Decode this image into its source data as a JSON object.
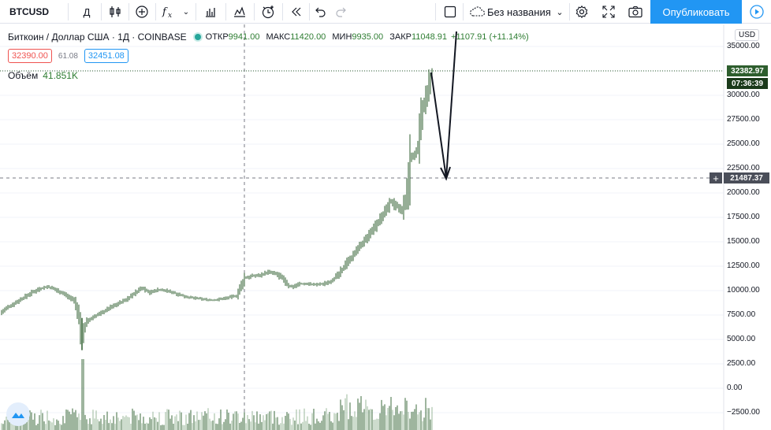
{
  "toolbar": {
    "symbol": "BTCUSD",
    "interval": "Д",
    "icons": [
      "candles-icon",
      "add-icon",
      "indicators-icon",
      "bar-chart-icon",
      "templates-icon",
      "alert-icon",
      "replay-icon",
      "undo-icon",
      "redo-icon"
    ],
    "layout_name": "Без названия",
    "publish_label": "Опубликовать"
  },
  "legend": {
    "title": "Биткоин / Доллар США · 1Д · COINBASE",
    "open_label": "ОТКР",
    "open_value": "9941.00",
    "high_label": "МАКС",
    "high_value": "11420.00",
    "low_label": "МИН",
    "low_value": "9935.00",
    "close_label": "ЗАКР",
    "close_value": "11048.91",
    "change": "+1107.91 (+11.14%)"
  },
  "prices": {
    "sell": "32390.00",
    "spread": "61.08",
    "buy": "32451.08"
  },
  "volume": {
    "label": "Объём",
    "value": "41.851K"
  },
  "axis": {
    "currency": "USD",
    "last_price": "32382.97",
    "countdown": "07:36:39",
    "crosshair_price": "21487.37"
  },
  "colors": {
    "up": "#26a69a",
    "down": "#ef5350",
    "accent": "#2196f3",
    "candle": "#2e5e2e"
  },
  "chart_data": {
    "type": "line",
    "y_ticks": [
      "35000.00",
      "32500.00",
      "30000.00",
      "27500.00",
      "25000.00",
      "22500.00",
      "20000.00",
      "17500.00",
      "15000.00",
      "12500.00",
      "10000.00",
      "7500.00",
      "5000.00",
      "2500.00",
      "0.00",
      "−2500.00"
    ],
    "ylim": [
      -3000,
      37000
    ],
    "x": [
      0,
      10,
      20,
      30,
      40,
      50,
      60,
      70,
      80,
      90,
      95,
      100,
      103,
      106,
      110,
      120,
      130,
      140,
      150,
      160,
      170,
      180,
      190,
      200,
      210,
      220,
      230,
      240,
      250,
      260,
      270,
      280,
      290,
      300,
      305,
      310,
      320,
      330,
      340,
      350,
      360,
      365,
      370,
      380,
      390,
      400,
      410,
      420,
      430,
      440,
      450,
      460,
      470,
      480,
      490,
      495,
      500,
      505,
      510,
      515,
      518,
      520,
      525,
      530,
      535,
      540,
      545,
      548
    ],
    "close": [
      7700,
      8300,
      8800,
      9300,
      9800,
      10200,
      10400,
      10100,
      9700,
      9200,
      8800,
      7000,
      5100,
      6200,
      6800,
      7400,
      7800,
      8300,
      8700,
      9100,
      9700,
      10300,
      9800,
      10100,
      10000,
      9800,
      9500,
      9300,
      9200,
      9100,
      9000,
      9150,
      9300,
      9500,
      10300,
      11300,
      11500,
      11600,
      11900,
      11700,
      11100,
      10500,
      10400,
      10700,
      10700,
      10600,
      10700,
      11000,
      11700,
      12900,
      13800,
      14900,
      15900,
      17100,
      18300,
      19300,
      18800,
      18500,
      18200,
      19700,
      21500,
      23500,
      23800,
      24800,
      28500,
      29800,
      31700,
      32380
    ],
    "volume_note": "volume histogram bars"
  }
}
